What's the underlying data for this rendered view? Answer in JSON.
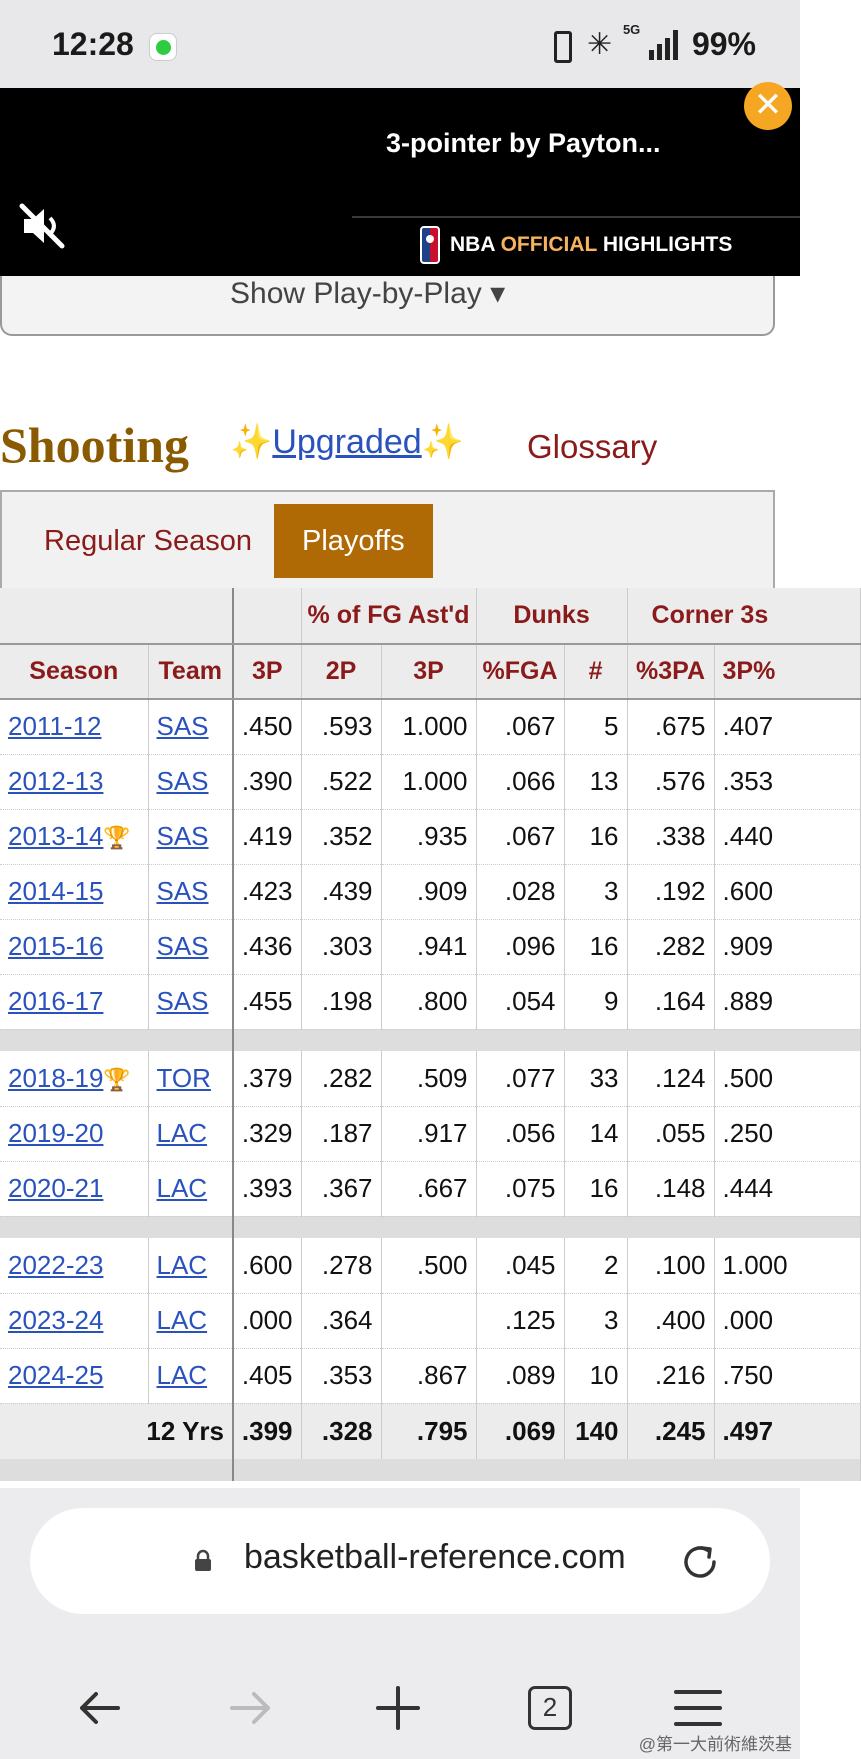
{
  "status_bar": {
    "time": "12:28",
    "network": "5G",
    "battery": "99%",
    "icons": [
      "messages-app-icon",
      "vibrate-icon",
      "bluetooth-icon",
      "signal-icon"
    ]
  },
  "video": {
    "title": "3-pointer by Payton...",
    "brand_prefix": "NBA",
    "brand_accent": "OFFICIAL",
    "brand_suffix": "HIGHLIGHTS",
    "accent_color": "#f6b25c",
    "close_color": "#f5a623",
    "icons": [
      "mute-icon",
      "nba-logo-icon",
      "close-icon"
    ]
  },
  "page": {
    "play_by_play": "Show Play-by-Play ▾",
    "section_title": "Shooting",
    "upgraded_prefix": "✨",
    "upgraded": "Upgraded",
    "upgraded_suffix": "✨",
    "glossary": "Glossary",
    "tabs": [
      {
        "label": "Regular Season",
        "active": false
      },
      {
        "label": "Playoffs",
        "active": true
      }
    ],
    "colors": {
      "title": "#8a5a00",
      "header_text": "#8b1a1a",
      "active_tab": "#b06a05",
      "link": "#2a52be"
    }
  },
  "table": {
    "over_headers": [
      "",
      "",
      "% of FG Ast'd",
      "Dunks",
      "Corner 3s"
    ],
    "headers": [
      "Season",
      "Team",
      "3P",
      "2P",
      "3P",
      "%FGA",
      "#",
      "%3PA",
      "3P%"
    ],
    "rows": [
      {
        "season": "2011-12",
        "trophy": "",
        "team": "SAS",
        "c1": ".450",
        "c2": ".593",
        "c3": "1.000",
        "c4": ".067",
        "c5": "5",
        "c6": ".675",
        "c7": ".407"
      },
      {
        "season": "2012-13",
        "trophy": "",
        "team": "SAS",
        "c1": ".390",
        "c2": ".522",
        "c3": "1.000",
        "c4": ".066",
        "c5": "13",
        "c6": ".576",
        "c7": ".353"
      },
      {
        "season": "2013-14",
        "trophy": "🏆",
        "team": "SAS",
        "c1": ".419",
        "c2": ".352",
        "c3": ".935",
        "c4": ".067",
        "c5": "16",
        "c6": ".338",
        "c7": ".440"
      },
      {
        "season": "2014-15",
        "trophy": "",
        "team": "SAS",
        "c1": ".423",
        "c2": ".439",
        "c3": ".909",
        "c4": ".028",
        "c5": "3",
        "c6": ".192",
        "c7": ".600"
      },
      {
        "season": "2015-16",
        "trophy": "",
        "team": "SAS",
        "c1": ".436",
        "c2": ".303",
        "c3": ".941",
        "c4": ".096",
        "c5": "16",
        "c6": ".282",
        "c7": ".909"
      },
      {
        "season": "2016-17",
        "trophy": "",
        "team": "SAS",
        "c1": ".455",
        "c2": ".198",
        "c3": ".800",
        "c4": ".054",
        "c5": "9",
        "c6": ".164",
        "c7": ".889"
      },
      {
        "season": "2018-19",
        "trophy": "🏆",
        "team": "TOR",
        "c1": ".379",
        "c2": ".282",
        "c3": ".509",
        "c4": ".077",
        "c5": "33",
        "c6": ".124",
        "c7": ".500"
      },
      {
        "season": "2019-20",
        "trophy": "",
        "team": "LAC",
        "c1": ".329",
        "c2": ".187",
        "c3": ".917",
        "c4": ".056",
        "c5": "14",
        "c6": ".055",
        "c7": ".250"
      },
      {
        "season": "2020-21",
        "trophy": "",
        "team": "LAC",
        "c1": ".393",
        "c2": ".367",
        "c3": ".667",
        "c4": ".075",
        "c5": "16",
        "c6": ".148",
        "c7": ".444"
      },
      {
        "season": "2022-23",
        "trophy": "",
        "team": "LAC",
        "c1": ".600",
        "c2": ".278",
        "c3": ".500",
        "c4": ".045",
        "c5": "2",
        "c6": ".100",
        "c7": "1.000"
      },
      {
        "season": "2023-24",
        "trophy": "",
        "team": "LAC",
        "c1": ".000",
        "c2": ".364",
        "c3": "",
        "c4": ".125",
        "c5": "3",
        "c6": ".400",
        "c7": ".000"
      },
      {
        "season": "2024-25",
        "trophy": "",
        "team": "LAC",
        "c1": ".405",
        "c2": ".353",
        "c3": ".867",
        "c4": ".089",
        "c5": "10",
        "c6": ".216",
        "c7": ".750"
      }
    ],
    "total": {
      "label": "12 Yrs",
      "c1": ".399",
      "c2": ".328",
      "c3": ".795",
      "c4": ".069",
      "c5": "140",
      "c6": ".245",
      "c7": ".497"
    }
  },
  "browser": {
    "url": "basketball-reference.com",
    "tab_count": "2",
    "icons": [
      "lock-icon",
      "reload-icon",
      "back-icon",
      "forward-icon",
      "new-tab-icon",
      "tab-count-icon",
      "menu-icon"
    ]
  },
  "watermark": "@第一大前術維茨基"
}
